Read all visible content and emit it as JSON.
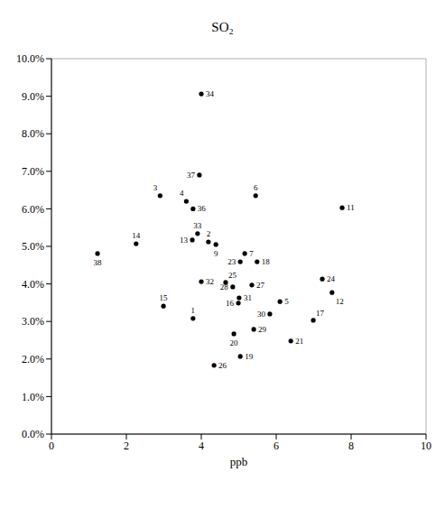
{
  "chart_data": {
    "type": "scatter",
    "title": "SO₂",
    "x_label": "ppb",
    "x": [
      3.78,
      4.19,
      2.9,
      3.6,
      6.1,
      5.45,
      5.16,
      4.39,
      7.76,
      7.49,
      3.76,
      2.26,
      2.99,
      4.99,
      6.99,
      5.49,
      5.04,
      4.87,
      6.39,
      5.04,
      7.23,
      4.65,
      4.34,
      5.35,
      4.84,
      5.4,
      5.83,
      5.01,
      4.0,
      3.9,
      4.0,
      3.78,
      3.95,
      1.23
    ],
    "values": [
      3.08,
      5.12,
      6.35,
      6.2,
      3.53,
      6.35,
      4.81,
      5.05,
      6.03,
      3.77,
      5.17,
      5.07,
      3.41,
      3.49,
      3.03,
      4.59,
      2.07,
      2.67,
      2.48,
      4.59,
      4.13,
      4.04,
      1.83,
      3.97,
      3.92,
      2.79,
      3.2,
      3.63,
      4.06,
      5.34,
      9.06,
      6.0,
      6.9,
      4.81
    ],
    "point_labels": [
      "1",
      "2",
      "3",
      "4",
      "5",
      "6",
      "7",
      "9",
      "11",
      "12",
      "13",
      "14",
      "15",
      "16",
      "17",
      "18",
      "19",
      "20",
      "21",
      "23",
      "24",
      "25",
      "26",
      "27",
      "28",
      "29",
      "30",
      "31",
      "32",
      "33",
      "34",
      "36",
      "37",
      "38"
    ],
    "color": "#000000",
    "marker": "circle",
    "xlim": [
      0,
      10
    ],
    "xticks": [
      0,
      2,
      4,
      6,
      8,
      10
    ],
    "ylim": [
      0,
      10
    ],
    "yticks": [
      {
        "value": 0,
        "label": "0.0%"
      },
      {
        "value": 1,
        "label": "1.0%"
      },
      {
        "value": 2,
        "label": "2.0%"
      },
      {
        "value": 3,
        "label": "3.0%"
      },
      {
        "value": 4,
        "label": "4.0%"
      },
      {
        "value": 5,
        "label": "5.0%"
      },
      {
        "value": 6,
        "label": "6.0%"
      },
      {
        "value": 7,
        "label": "7.0%"
      },
      {
        "value": 8,
        "label": "8.0%"
      },
      {
        "value": 9,
        "label": "9.0%"
      },
      {
        "value": 10,
        "label": "10.0%"
      }
    ],
    "grid": true
  }
}
